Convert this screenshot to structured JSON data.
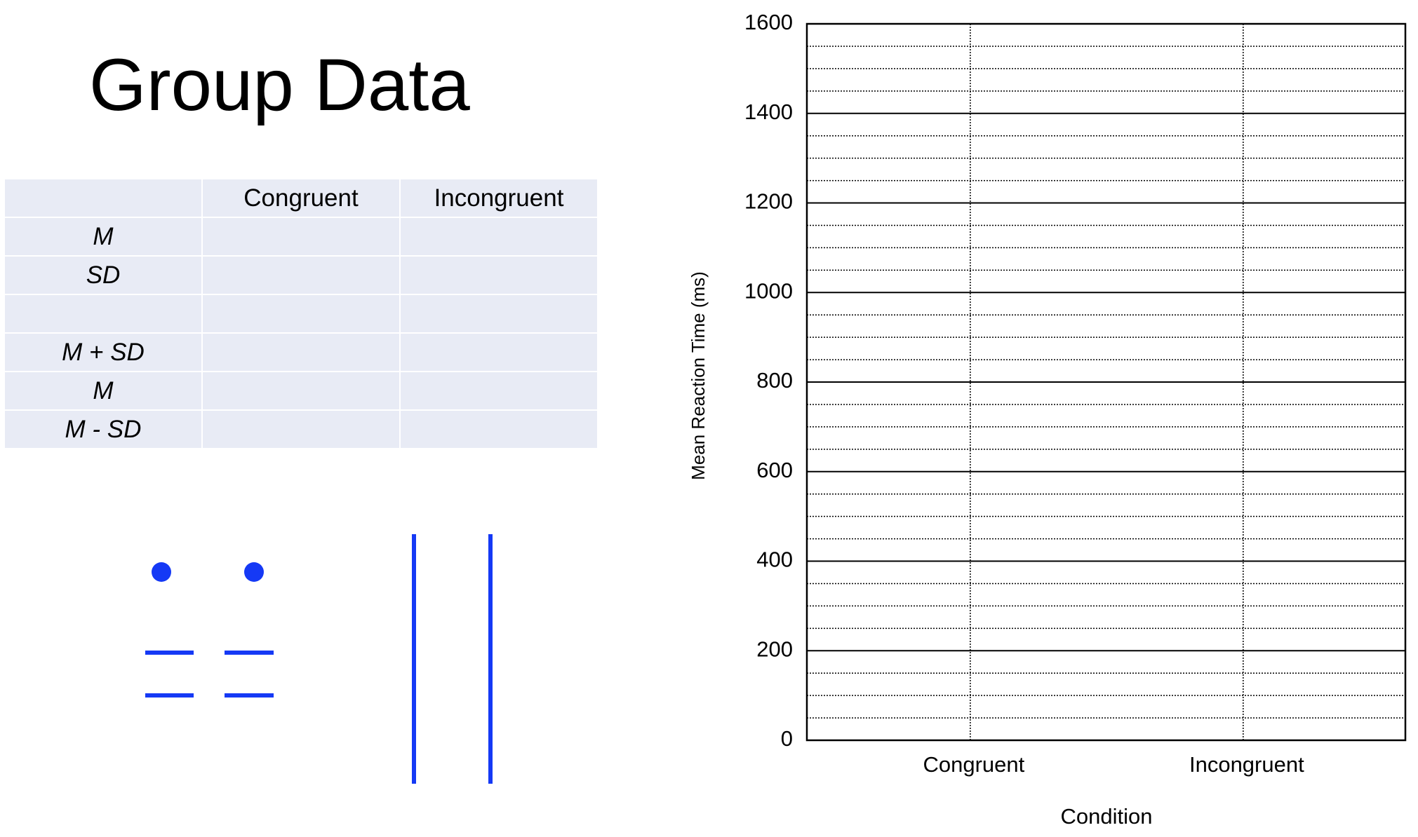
{
  "header": {
    "title": "Group Data"
  },
  "table": {
    "columns": [
      "Congruent",
      "Incongruent"
    ],
    "row_labels": [
      "M",
      "SD",
      null,
      "M + SD",
      "M",
      "M - SD"
    ]
  },
  "chart_data": {
    "type": "bar",
    "categories": [
      "Congruent",
      "Incongruent"
    ],
    "x_label": "Condition",
    "y_label": "Mean Reaction Time (ms)",
    "ylim": [
      0,
      1600
    ],
    "yticks": [
      0,
      200,
      400,
      600,
      800,
      1000,
      1200,
      1400,
      1600
    ],
    "yminorticks": [
      50,
      100,
      150,
      250,
      300,
      350,
      450,
      500,
      550,
      650,
      700,
      750,
      850,
      900,
      950,
      1050,
      1100,
      1150,
      1250,
      1300,
      1350,
      1450,
      1500,
      1550
    ],
    "grid": true
  }
}
